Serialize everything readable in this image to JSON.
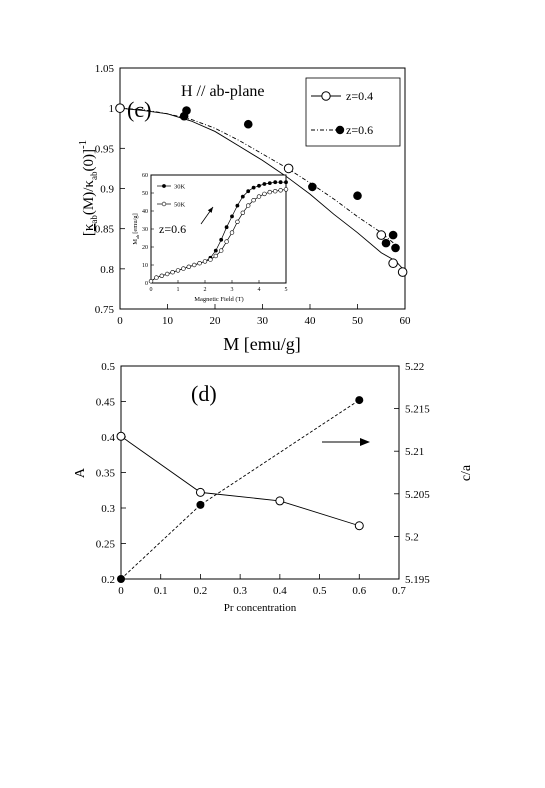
{
  "chart_data": [
    {
      "type": "scatter",
      "panel_label": "(c)",
      "annotation": "H // ab-plane",
      "xlabel": "M [emu/g]",
      "ylabel": "[κ_ab(M)/κ_ab(0)]^-1",
      "ylabel_parts": {
        "open": "[",
        "kappa": "κ",
        "ab": "ab",
        "mid": "(M)/κ",
        "ab2": "ab",
        "tail": "(0)]",
        "exp": "-1"
      },
      "xlim": [
        0,
        60
      ],
      "ylim": [
        0.75,
        1.05
      ],
      "xticks": [
        "0",
        "10",
        "20",
        "30",
        "40",
        "50",
        "60"
      ],
      "yticks": [
        "0.75",
        "0.8",
        "0.85",
        "0.9",
        "0.95",
        "1",
        "1.05"
      ],
      "legend_position": "top-right",
      "series": [
        {
          "name": "z=0.4",
          "marker": "open-circle",
          "line": "solid",
          "points": [
            [
              0,
              1.0
            ],
            [
              35.5,
              0.925
            ],
            [
              55.0,
              0.842
            ],
            [
              57.5,
              0.807
            ],
            [
              59.5,
              0.796
            ]
          ],
          "curve": [
            [
              0,
              1.0
            ],
            [
              5,
              0.997
            ],
            [
              10,
              0.993
            ],
            [
              15,
              0.984
            ],
            [
              20,
              0.971
            ],
            [
              25,
              0.953
            ],
            [
              30,
              0.935
            ],
            [
              35,
              0.915
            ],
            [
              40,
              0.893
            ],
            [
              45,
              0.868
            ],
            [
              50,
              0.845
            ],
            [
              55,
              0.82
            ],
            [
              58,
              0.81
            ],
            [
              60,
              0.797
            ]
          ]
        },
        {
          "name": "z=0.6",
          "marker": "filled-circle",
          "line": "dash-dot",
          "points": [
            [
              13.5,
              0.99
            ],
            [
              14.0,
              0.997
            ],
            [
              27.0,
              0.98
            ],
            [
              40.5,
              0.902
            ],
            [
              50.0,
              0.891
            ],
            [
              56.0,
              0.832
            ],
            [
              57.5,
              0.842
            ],
            [
              58.0,
              0.826
            ]
          ],
          "curve": [
            [
              0,
              1.0
            ],
            [
              5,
              0.998
            ],
            [
              10,
              0.993
            ],
            [
              15,
              0.986
            ],
            [
              20,
              0.975
            ],
            [
              25,
              0.96
            ],
            [
              30,
              0.943
            ],
            [
              35,
              0.926
            ],
            [
              40,
              0.907
            ],
            [
              45,
              0.887
            ],
            [
              50,
              0.865
            ],
            [
              55,
              0.845
            ],
            [
              58,
              0.83
            ]
          ]
        }
      ],
      "inset": {
        "annotation": "z=0.6",
        "xlabel": "Magnetic Field (T)",
        "ylabel": "M [emu/g]",
        "ylabel_parts": {
          "m": "M",
          "sub": "ab",
          "units": "[emu/g]"
        },
        "xlim": [
          0,
          5
        ],
        "ylim": [
          0,
          60
        ],
        "xticks": [
          "0",
          "1",
          "2",
          "3",
          "4",
          "5"
        ],
        "yticks": [
          "0",
          "10",
          "20",
          "30",
          "40",
          "50",
          "60"
        ],
        "series": [
          {
            "name": "30K",
            "marker": "filled-circle",
            "x": [
              0,
              0.2,
              0.4,
              0.6,
              0.8,
              1.0,
              1.2,
              1.4,
              1.6,
              1.8,
              2.0,
              2.2,
              2.4,
              2.6,
              2.8,
              3.0,
              3.2,
              3.4,
              3.6,
              3.8,
              4.0,
              4.2,
              4.4,
              4.6,
              4.8,
              5.0
            ],
            "y": [
              1,
              3,
              4,
              5,
              6,
              7,
              8,
              9,
              10,
              11,
              12,
              14,
              18,
              24,
              31,
              37,
              43,
              48,
              51,
              53,
              54,
              55,
              55.5,
              56,
              56,
              56
            ]
          },
          {
            "name": "50K",
            "marker": "open-circle",
            "x": [
              0,
              0.2,
              0.4,
              0.6,
              0.8,
              1.0,
              1.2,
              1.4,
              1.6,
              1.8,
              2.0,
              2.2,
              2.4,
              2.6,
              2.8,
              3.0,
              3.2,
              3.4,
              3.6,
              3.8,
              4.0,
              4.2,
              4.4,
              4.6,
              4.8,
              5.0
            ],
            "y": [
              1,
              3,
              4,
              5,
              6,
              7,
              8,
              9,
              10,
              11,
              12,
              13,
              15,
              18,
              23,
              28,
              34,
              39,
              43,
              46,
              48,
              49.5,
              50.5,
              51,
              51.5,
              52
            ]
          }
        ]
      }
    },
    {
      "type": "line",
      "panel_label": "(d)",
      "xlabel": "Pr concentration",
      "ylabel": "A",
      "ylabel_right": "c/a",
      "xlim": [
        0,
        0.7
      ],
      "ylim": [
        0.2,
        0.5
      ],
      "ylim_right": [
        5.195,
        5.22
      ],
      "xticks": [
        "0",
        "0.1",
        "0.2",
        "0.3",
        "0.4",
        "0.5",
        "0.6",
        "0.7"
      ],
      "yticks": [
        "0.2",
        "0.25",
        "0.3",
        "0.35",
        "0.4",
        "0.45",
        "0.5"
      ],
      "yticks_right": [
        "5.195",
        "5.2",
        "5.205",
        "5.21",
        "5.215",
        "5.22"
      ],
      "series": [
        {
          "name": "A",
          "axis": "left",
          "marker": "open-circle",
          "line": "solid",
          "x": [
            0,
            0.2,
            0.4,
            0.6
          ],
          "y": [
            0.401,
            0.322,
            0.31,
            0.275
          ]
        },
        {
          "name": "c/a",
          "axis": "right",
          "marker": "filled-circle",
          "line": "dashed",
          "x": [
            0,
            0.2,
            0.6
          ],
          "y": [
            5.195,
            5.2037,
            5.216
          ]
        }
      ],
      "arrow": {
        "direction": "right",
        "meaning": "right axis"
      }
    }
  ]
}
